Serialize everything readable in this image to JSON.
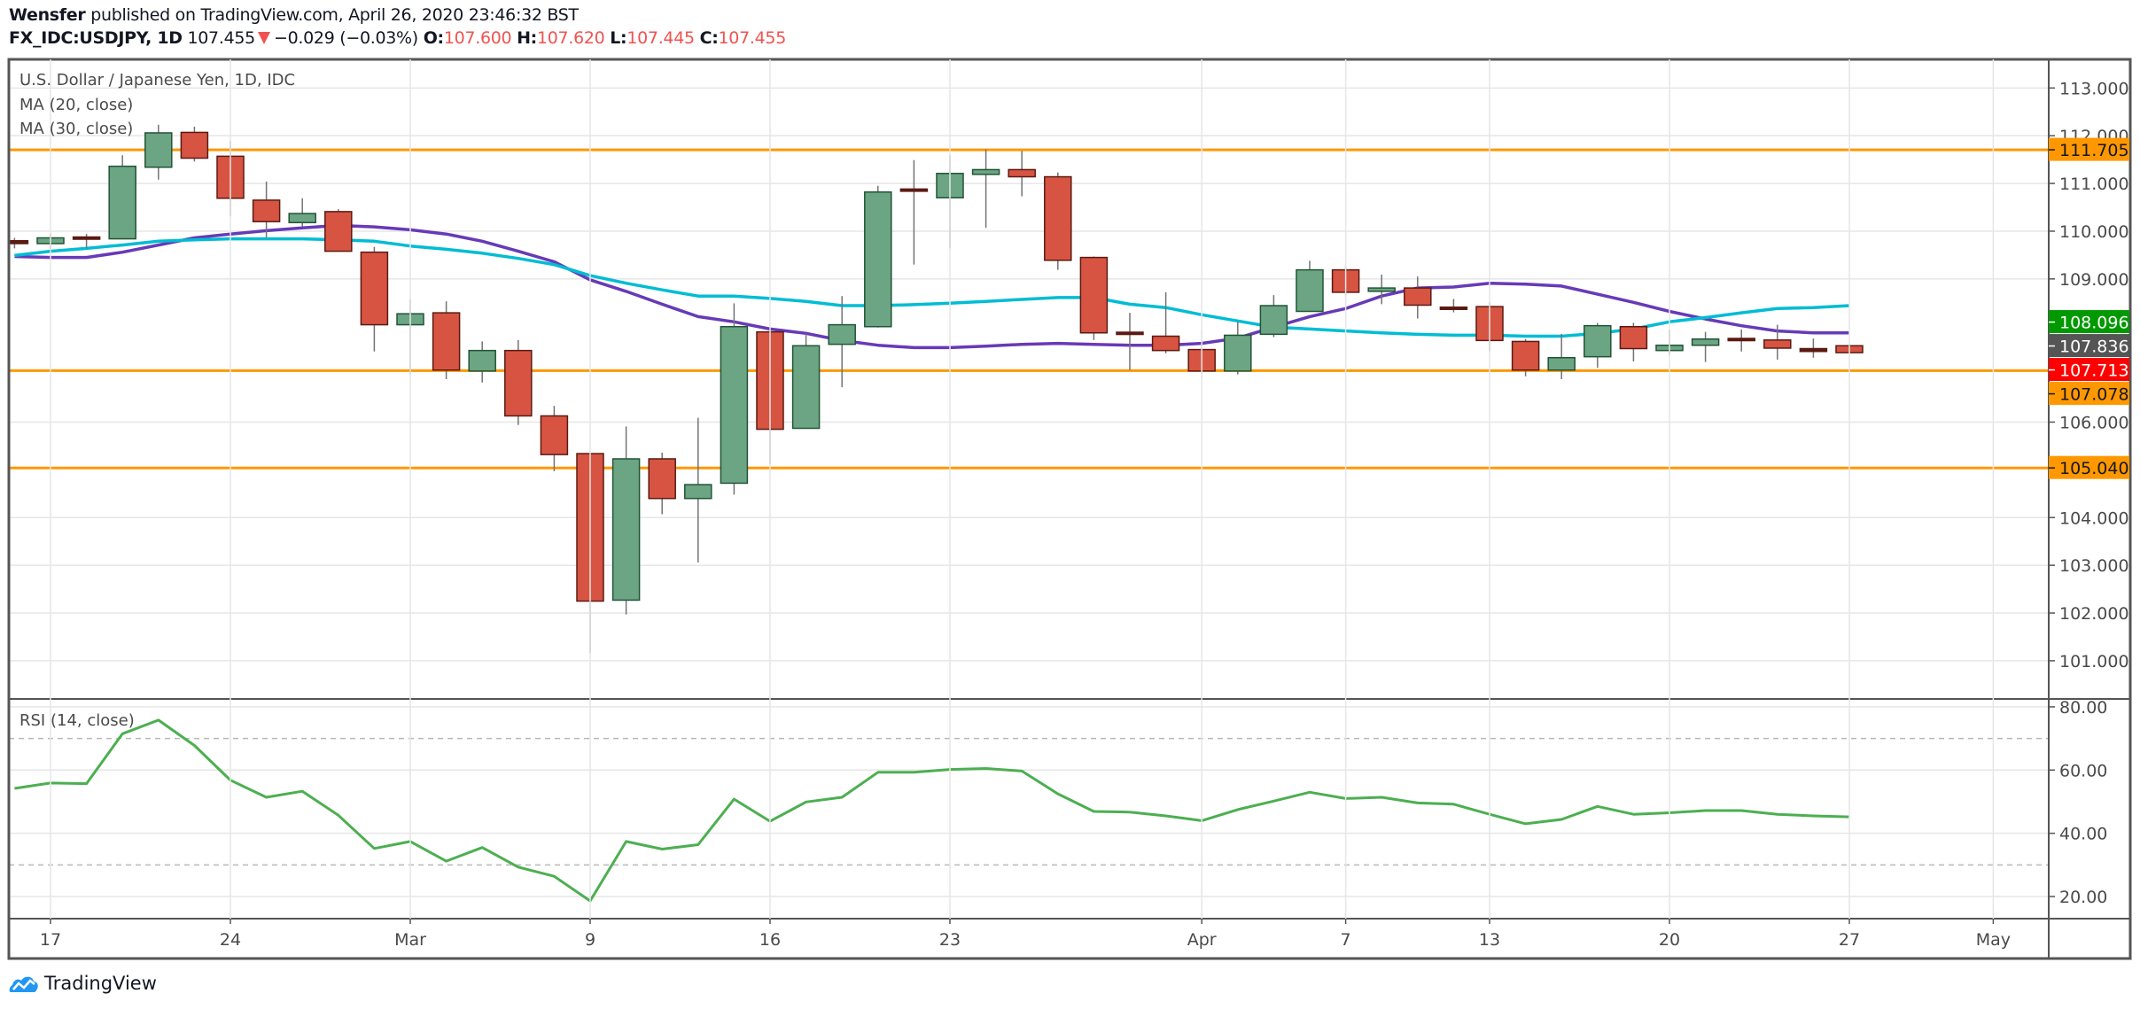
{
  "header": {
    "author": "Wensfer",
    "published_text": "published on TradingView.com, April 26, 2020 23:46:32 BST",
    "symbol": "FX_IDC:USDJPY, 1D",
    "last_price": "107.455",
    "change": "−0.029 (−0.03%)",
    "o_label": "O:",
    "o_value": "107.600",
    "h_label": "H:",
    "h_value": "107.620",
    "l_label": "L:",
    "l_value": "107.445",
    "c_label": "C:",
    "c_value": "107.455",
    "direction_icon": "triangle-down-icon"
  },
  "legend": {
    "title": "U.S. Dollar / Japanese Yen, 1D, IDC",
    "ma20": "MA (20, close)",
    "ma30": "MA (30, close)",
    "rsi": "RSI (14, close)"
  },
  "branding": {
    "name": "TradingView",
    "icon": "tradingview-logo-icon"
  },
  "colors": {
    "up_body": "#6ba583",
    "up_border": "#225437",
    "down_body": "#d75442",
    "down_border": "#5b1a13",
    "wick": "#737375",
    "ma20": "#673ab7",
    "ma30": "#00bcd4",
    "rsi": "#4caf50",
    "level_line": "#ff9800",
    "grid": "#e6e6e6",
    "frame": "#555555"
  },
  "chart_data": [
    {
      "type": "candlestick",
      "title": "U.S. Dollar / Japanese Yen, 1D, IDC",
      "ylim": [
        100.2,
        113.6
      ],
      "y_ticks": [
        "101.000",
        "102.000",
        "103.000",
        "104.000",
        "106.000",
        "109.000",
        "110.000",
        "111.000",
        "112.000",
        "113.000"
      ],
      "x_ticks": [
        {
          "label": "17",
          "index": 0
        },
        {
          "label": "24",
          "index": 5
        },
        {
          "label": "Mar",
          "index": 10
        },
        {
          "label": "9",
          "index": 15
        },
        {
          "label": "16",
          "index": 20
        },
        {
          "label": "23",
          "index": 25
        },
        {
          "label": "Apr",
          "index": 32
        },
        {
          "label": "7",
          "index": 36
        },
        {
          "label": "13",
          "index": 40
        },
        {
          "label": "20",
          "index": 45
        },
        {
          "label": "27",
          "index": 50
        },
        {
          "label": "May",
          "index": 54
        }
      ],
      "candles": [
        {
          "d": "2020-02-14",
          "i": -1,
          "o": 109.8,
          "h": 109.86,
          "l": 109.64,
          "c": 109.74
        },
        {
          "d": "2020-02-17",
          "i": 0,
          "o": 109.74,
          "h": 109.95,
          "l": 109.56,
          "c": 109.86
        },
        {
          "d": "2020-02-18",
          "i": 1,
          "o": 109.86,
          "h": 109.94,
          "l": 109.64,
          "c": 109.85
        },
        {
          "d": "2020-02-19",
          "i": 2,
          "o": 109.84,
          "h": 111.59,
          "l": 109.84,
          "c": 111.36
        },
        {
          "d": "2020-02-20",
          "i": 3,
          "o": 111.34,
          "h": 112.23,
          "l": 111.08,
          "c": 112.06
        },
        {
          "d": "2020-02-21",
          "i": 4,
          "o": 112.07,
          "h": 112.19,
          "l": 111.46,
          "c": 111.53
        },
        {
          "d": "2020-02-24",
          "i": 5,
          "o": 111.57,
          "h": 111.89,
          "l": 110.31,
          "c": 110.69
        },
        {
          "d": "2020-02-25",
          "i": 6,
          "o": 110.65,
          "h": 111.04,
          "l": 109.86,
          "c": 110.2
        },
        {
          "d": "2020-02-26",
          "i": 7,
          "o": 110.18,
          "h": 110.69,
          "l": 110.1,
          "c": 110.37
        },
        {
          "d": "2020-02-27",
          "i": 8,
          "o": 110.41,
          "h": 110.46,
          "l": 109.58,
          "c": 109.58
        },
        {
          "d": "2020-02-28",
          "i": 9,
          "o": 109.56,
          "h": 109.67,
          "l": 107.48,
          "c": 108.04
        },
        {
          "d": "2020-03-02",
          "i": 10,
          "o": 108.04,
          "h": 108.57,
          "l": 107.0,
          "c": 108.27
        },
        {
          "d": "2020-03-03",
          "i": 11,
          "o": 108.29,
          "h": 108.53,
          "l": 106.9,
          "c": 107.09
        },
        {
          "d": "2020-03-04",
          "i": 12,
          "o": 107.07,
          "h": 107.69,
          "l": 106.83,
          "c": 107.5
        },
        {
          "d": "2020-03-05",
          "i": 13,
          "o": 107.5,
          "h": 107.72,
          "l": 105.94,
          "c": 106.13
        },
        {
          "d": "2020-03-06",
          "i": 14,
          "o": 106.13,
          "h": 106.34,
          "l": 104.97,
          "c": 105.32
        },
        {
          "d": "2020-03-09",
          "i": 15,
          "o": 105.34,
          "h": 105.34,
          "l": 101.16,
          "c": 102.25
        },
        {
          "d": "2020-03-10",
          "i": 16,
          "o": 102.27,
          "h": 105.91,
          "l": 101.97,
          "c": 105.23
        },
        {
          "d": "2020-03-11",
          "i": 17,
          "o": 105.23,
          "h": 105.36,
          "l": 104.07,
          "c": 104.4
        },
        {
          "d": "2020-03-12",
          "i": 18,
          "o": 104.4,
          "h": 106.09,
          "l": 103.06,
          "c": 104.69
        },
        {
          "d": "2020-03-13",
          "i": 19,
          "o": 104.72,
          "h": 108.49,
          "l": 104.48,
          "c": 108.0
        },
        {
          "d": "2020-03-16",
          "i": 20,
          "o": 107.89,
          "h": 107.9,
          "l": 105.12,
          "c": 105.85
        },
        {
          "d": "2020-03-17",
          "i": 21,
          "o": 105.87,
          "h": 107.85,
          "l": 105.87,
          "c": 107.6
        },
        {
          "d": "2020-03-18",
          "i": 22,
          "o": 107.63,
          "h": 108.64,
          "l": 106.73,
          "c": 108.04
        },
        {
          "d": "2020-03-19",
          "i": 23,
          "o": 108.0,
          "h": 110.95,
          "l": 107.98,
          "c": 110.82
        },
        {
          "d": "2020-03-20",
          "i": 24,
          "o": 110.88,
          "h": 111.49,
          "l": 109.3,
          "c": 110.84
        },
        {
          "d": "2020-03-23",
          "i": 25,
          "o": 110.7,
          "h": 111.59,
          "l": 109.64,
          "c": 111.21
        },
        {
          "d": "2020-03-24",
          "i": 26,
          "o": 111.19,
          "h": 111.72,
          "l": 110.07,
          "c": 111.29
        },
        {
          "d": "2020-03-25",
          "i": 27,
          "o": 111.29,
          "h": 111.68,
          "l": 110.73,
          "c": 111.14
        },
        {
          "d": "2020-03-26",
          "i": 28,
          "o": 111.14,
          "h": 111.23,
          "l": 109.19,
          "c": 109.39
        },
        {
          "d": "2020-03-27",
          "i": 29,
          "o": 109.45,
          "h": 109.47,
          "l": 107.72,
          "c": 107.87
        },
        {
          "d": "2020-03-30",
          "i": 30,
          "o": 107.88,
          "h": 108.29,
          "l": 107.09,
          "c": 107.84
        },
        {
          "d": "2020-03-31",
          "i": 31,
          "o": 107.8,
          "h": 108.72,
          "l": 107.44,
          "c": 107.5
        },
        {
          "d": "2020-04-01",
          "i": 32,
          "o": 107.52,
          "h": 107.93,
          "l": 106.9,
          "c": 107.07
        },
        {
          "d": "2020-04-02",
          "i": 33,
          "o": 107.07,
          "h": 108.1,
          "l": 107.0,
          "c": 107.82
        },
        {
          "d": "2020-04-03",
          "i": 34,
          "o": 107.84,
          "h": 108.66,
          "l": 107.78,
          "c": 108.44
        },
        {
          "d": "2020-04-06",
          "i": 35,
          "o": 108.32,
          "h": 109.38,
          "l": 108.32,
          "c": 109.19
        },
        {
          "d": "2020-04-07",
          "i": 36,
          "o": 109.19,
          "h": 109.28,
          "l": 108.64,
          "c": 108.72
        },
        {
          "d": "2020-04-08",
          "i": 37,
          "o": 108.74,
          "h": 109.09,
          "l": 108.47,
          "c": 108.81
        },
        {
          "d": "2020-04-09",
          "i": 38,
          "o": 108.81,
          "h": 109.05,
          "l": 108.17,
          "c": 108.45
        },
        {
          "d": "2020-04-10",
          "i": 39,
          "o": 108.4,
          "h": 108.58,
          "l": 108.3,
          "c": 108.37
        },
        {
          "d": "2020-04-13",
          "i": 40,
          "o": 108.42,
          "h": 108.51,
          "l": 107.48,
          "c": 107.71
        },
        {
          "d": "2020-04-14",
          "i": 41,
          "o": 107.69,
          "h": 107.74,
          "l": 106.96,
          "c": 107.09
        },
        {
          "d": "2020-04-15",
          "i": 42,
          "o": 107.09,
          "h": 107.85,
          "l": 106.9,
          "c": 107.35
        },
        {
          "d": "2020-04-16",
          "i": 43,
          "o": 107.37,
          "h": 108.08,
          "l": 107.14,
          "c": 108.02
        },
        {
          "d": "2020-04-17",
          "i": 44,
          "o": 108.0,
          "h": 108.08,
          "l": 107.27,
          "c": 107.54
        },
        {
          "d": "2020-04-20",
          "i": 45,
          "o": 107.5,
          "h": 107.94,
          "l": 107.4,
          "c": 107.61
        },
        {
          "d": "2020-04-21",
          "i": 46,
          "o": 107.61,
          "h": 107.89,
          "l": 107.26,
          "c": 107.74
        },
        {
          "d": "2020-04-22",
          "i": 47,
          "o": 107.74,
          "h": 107.94,
          "l": 107.48,
          "c": 107.72
        },
        {
          "d": "2020-04-23",
          "i": 48,
          "o": 107.72,
          "h": 108.04,
          "l": 107.31,
          "c": 107.55
        },
        {
          "d": "2020-04-24",
          "i": 49,
          "o": 107.54,
          "h": 107.75,
          "l": 107.35,
          "c": 107.48
        },
        {
          "d": "2020-04-27",
          "i": 50,
          "o": 107.6,
          "h": 107.62,
          "l": 107.445,
          "c": 107.455
        }
      ],
      "series": [
        {
          "name": "MA (20, close)",
          "color_key": "ma20",
          "start_index": -1,
          "values": [
            109.47,
            109.45,
            109.45,
            109.56,
            109.71,
            109.86,
            109.94,
            110.01,
            110.07,
            110.12,
            110.09,
            110.03,
            109.94,
            109.79,
            109.58,
            109.36,
            108.98,
            108.74,
            108.47,
            108.21,
            108.1,
            107.95,
            107.86,
            107.71,
            107.61,
            107.56,
            107.56,
            107.59,
            107.63,
            107.65,
            107.63,
            107.61,
            107.61,
            107.65,
            107.76,
            107.99,
            108.21,
            108.38,
            108.64,
            108.81,
            108.83,
            108.91,
            108.89,
            108.85,
            108.68,
            108.51,
            108.32,
            108.16,
            108.02,
            107.91,
            107.87,
            107.87
          ]
        },
        {
          "name": "MA (30, close)",
          "color_key": "ma30",
          "start_index": -1,
          "values": [
            109.49,
            109.58,
            109.64,
            109.71,
            109.79,
            109.82,
            109.84,
            109.84,
            109.84,
            109.82,
            109.79,
            109.69,
            109.62,
            109.54,
            109.43,
            109.3,
            109.07,
            108.91,
            108.77,
            108.64,
            108.64,
            108.59,
            108.53,
            108.44,
            108.44,
            108.46,
            108.49,
            108.53,
            108.57,
            108.61,
            108.61,
            108.47,
            108.4,
            108.25,
            108.12,
            107.99,
            107.95,
            107.91,
            107.87,
            107.84,
            107.82,
            107.82,
            107.8,
            107.8,
            107.86,
            107.95,
            108.1,
            108.19,
            108.29,
            108.38,
            108.4,
            108.44
          ]
        }
      ],
      "levels": [
        111.705,
        107.078,
        105.04
      ],
      "price_labels": [
        {
          "text": "111.705",
          "value": 111.705,
          "bg": "#ff9800",
          "fg": "#131722"
        },
        {
          "text": "108.096",
          "value": 108.096,
          "bg": "#009900",
          "fg": "#ffffff"
        },
        {
          "text": "107.836",
          "value": 107.836,
          "bg": "#555555",
          "fg": "#ffffff"
        },
        {
          "text": "107.713",
          "value": 107.713,
          "bg": "#ff0000",
          "fg": "#ffffff"
        },
        {
          "text": "107.078",
          "value": 107.078,
          "bg": "#ff9800",
          "fg": "#131722"
        },
        {
          "text": "105.040",
          "value": 105.04,
          "bg": "#ff9800",
          "fg": "#131722"
        }
      ]
    },
    {
      "type": "line",
      "title": "RSI (14, close)",
      "ylim": [
        13,
        82.5
      ],
      "y_ticks": [
        "20.00",
        "40.00",
        "60.00",
        "80.00"
      ],
      "bands": [
        70,
        30
      ],
      "start_index": -1,
      "values": [
        54.2,
        55.9,
        55.7,
        71.5,
        75.8,
        67.8,
        56.8,
        51.4,
        53.3,
        45.7,
        35.2,
        37.4,
        31.2,
        35.5,
        29.3,
        26.4,
        18.6,
        37.4,
        35.0,
        36.4,
        50.8,
        43.8,
        49.9,
        51.4,
        59.3,
        59.3,
        60.2,
        60.5,
        59.7,
        52.5,
        46.9,
        46.7,
        45.5,
        44.0,
        47.5,
        50.2,
        53.0,
        51.0,
        51.4,
        49.6,
        49.2,
        46.0,
        43.0,
        44.4,
        48.5,
        46.0,
        46.5,
        47.2,
        47.2,
        46.0,
        45.5,
        45.2
      ]
    }
  ]
}
